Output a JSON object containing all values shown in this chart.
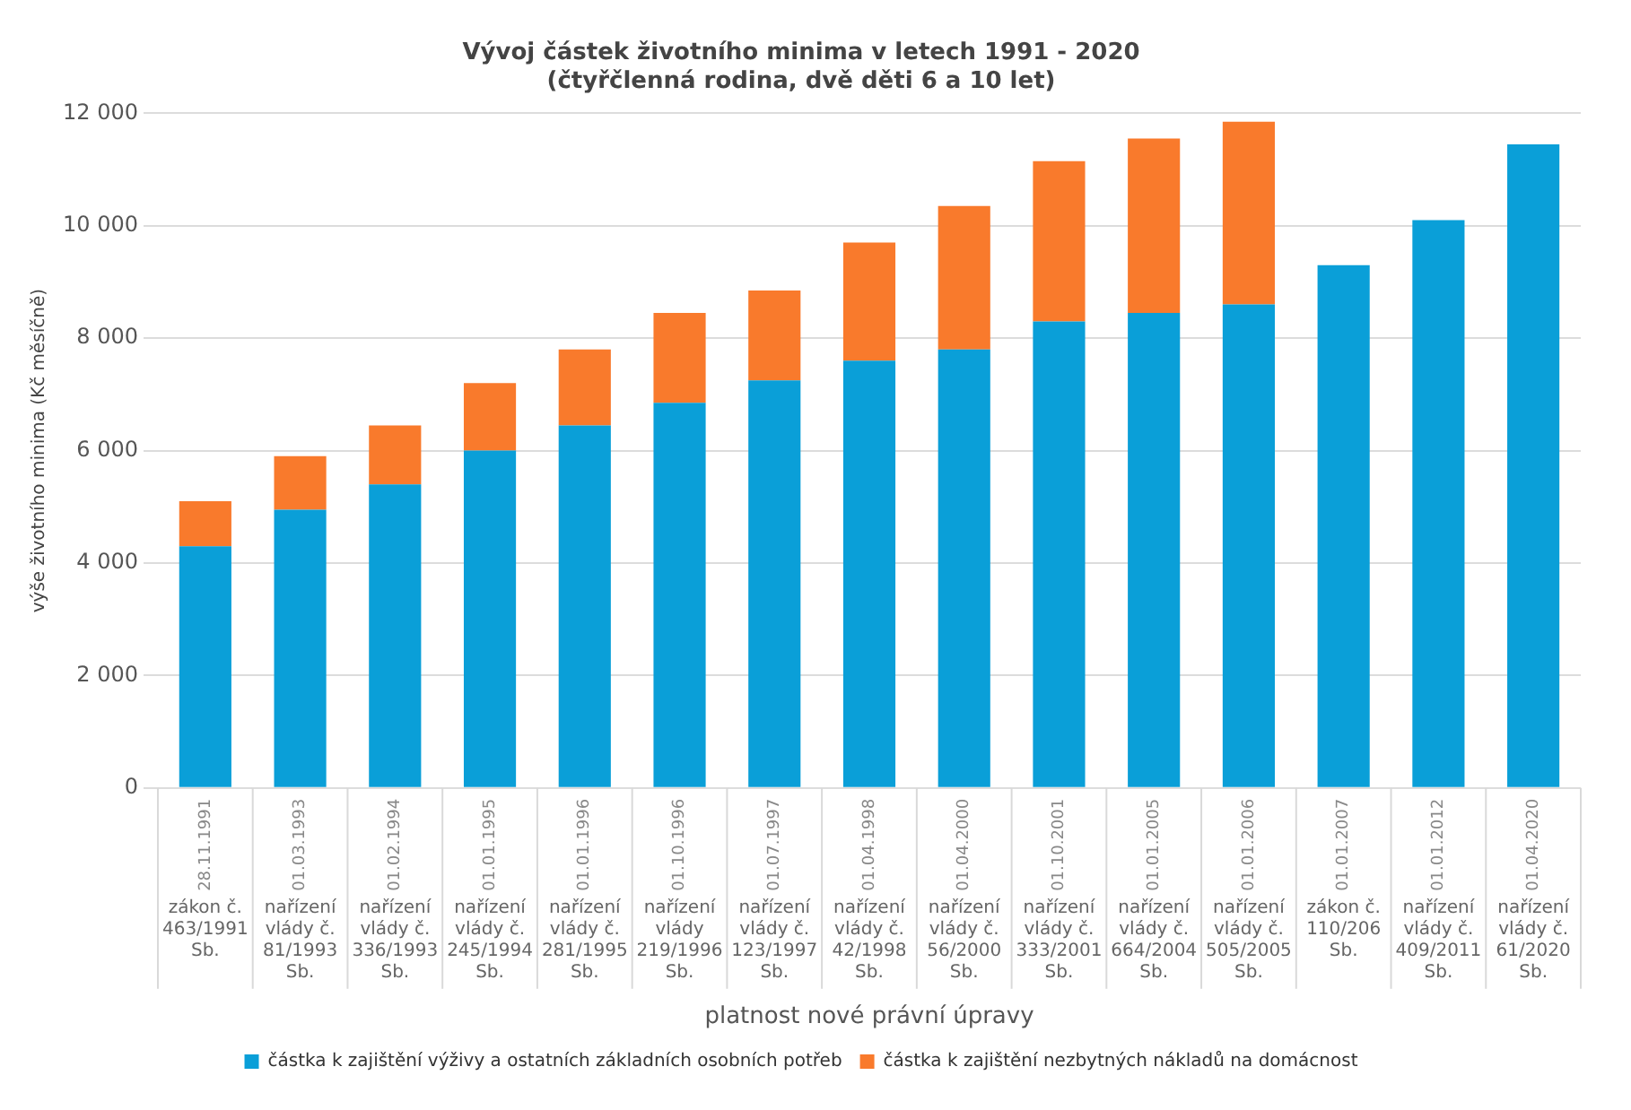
{
  "chart_data": {
    "type": "bar",
    "stacked": true,
    "title": "Vývoj částek životního minima v letech 1991 - 2020",
    "subtitle": "(čtyřčlenná rodina, dvě děti 6 a 10 let)",
    "xlabel": "platnost nové právní úpravy",
    "ylabel": "výše životního minima (Kč měsíčně)",
    "categories": [
      "28.11.1991\nzákon č. 463/1991 Sb.",
      "01.03.1993\nnařízení vlády č. 81/1993 Sb.",
      "01.02.1994\nnařízení vlády č. 336/1993 Sb.",
      "01.01.1995\nnařízení vlády č. 245/1994 Sb.",
      "01.01.1996\nnařízení vlády č. 281/1995 Sb.",
      "01.10.1996\nnařízení vlády 219/1996 Sb.",
      "01.07.1997\nnařízení vlády č. 123/1997 Sb.",
      "01.04.1998\nnařízení vlády č. 42/1998 Sb.",
      "01.04.2000\nnařízení vlády č. 56/2000 Sb.",
      "01.10.2001\nnařízení vlády č. 333/2001 Sb.",
      "01.01.2005\nnařízení vlády č. 664/2004 Sb.",
      "01.01.2006\nnařízení vlády č. 505/2005 Sb.",
      "01.01.2007\nzákon č. 110/206 Sb.",
      "01.01.2012\nnařízení vlády č. 409/2011 Sb.",
      "01.04.2020\nnařízení vlády č. 61/2020 Sb."
    ],
    "series": [
      {
        "name": "částka k zajištění výživy a ostatních základních osobních potřeb",
        "color": "#0a9fd8",
        "values": [
          4300,
          4950,
          5400,
          6000,
          6450,
          6850,
          7250,
          7600,
          7800,
          8300,
          8450,
          8600,
          9300,
          10100,
          11450
        ]
      },
      {
        "name": "částka k zajištění nezbytných nákladů na domácnost",
        "color": "#f97a2c",
        "values": [
          800,
          950,
          1050,
          1200,
          1350,
          1600,
          1600,
          2100,
          2550,
          2850,
          3100,
          3250,
          null,
          null,
          null
        ]
      }
    ],
    "ylim": [
      0,
      12000
    ],
    "yticks": [
      {
        "value": 0,
        "label": "0"
      },
      {
        "value": 2000,
        "label": "2 000"
      },
      {
        "value": 4000,
        "label": "4 000"
      },
      {
        "value": 6000,
        "label": "6 000"
      },
      {
        "value": 8000,
        "label": "8 000"
      },
      {
        "value": 10000,
        "label": "10 000"
      },
      {
        "value": 12000,
        "label": "12 000"
      }
    ],
    "grid": "y",
    "legend": "bottom"
  }
}
